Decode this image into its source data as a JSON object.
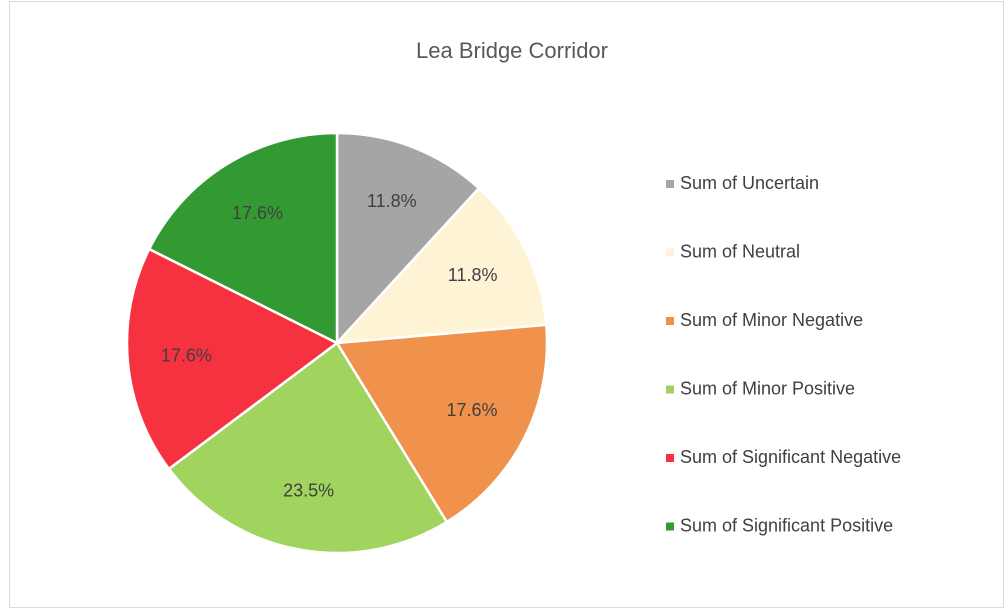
{
  "chart_data": {
    "type": "pie",
    "title": "Lea Bridge Corridor",
    "categories": [
      "Sum of Uncertain",
      "Sum of Neutral",
      "Sum of Minor Negative",
      "Sum of Minor Positive",
      "Sum of Significant Negative",
      "Sum of Significant Positive"
    ],
    "values": [
      11.8,
      11.8,
      17.6,
      23.5,
      17.6,
      17.6
    ],
    "value_labels": [
      "11.8%",
      "11.8%",
      "17.6%",
      "23.5%",
      "17.6%",
      "17.6%"
    ],
    "colors": [
      "#a5a5a5",
      "#fff3d6",
      "#f0924c",
      "#a0d45e",
      "#f73240",
      "#339933"
    ],
    "legend": "right"
  }
}
